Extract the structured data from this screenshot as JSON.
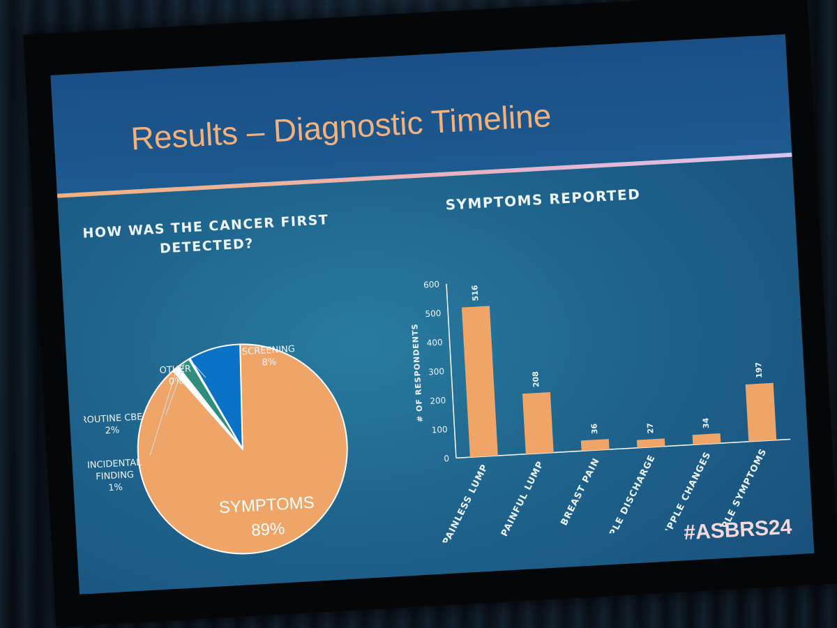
{
  "slide": {
    "title": "Results – Diagnostic Timeline",
    "hashtag": "#ASBRS24"
  },
  "colors": {
    "orange": "#f0a568",
    "teal": "#2f8d7e",
    "blue": "#0a73c6",
    "white": "#ffffff",
    "title": "#f3b27c"
  },
  "chart_data": [
    {
      "type": "pie",
      "title": "HOW WAS THE CANCER FIRST DETECTED?",
      "slices": [
        {
          "label": "SYMPTOMS",
          "value": 89,
          "display": "89%"
        },
        {
          "label": "INCIDENTAL FINDING",
          "value": 1,
          "display": "1%"
        },
        {
          "label": "ROUTINE CBE",
          "value": 2,
          "display": "2%"
        },
        {
          "label": "OTHER",
          "value": 0,
          "display": "0%"
        },
        {
          "label": "SCREENING",
          "value": 8,
          "display": "8%"
        }
      ]
    },
    {
      "type": "bar",
      "title": "SYMPTOMS REPORTED",
      "ylabel": "# OF RESPONDENTS",
      "ylim": [
        0,
        600
      ],
      "yticks": [
        0,
        100,
        200,
        300,
        400,
        500,
        600
      ],
      "categories": [
        "PAINLESS LUMP",
        "PAINFUL LUMP",
        "BREAST PAIN",
        "NIPPLE DISCHARGE",
        "SKIN/NIPPLE CHANGES",
        "MULTIPLE SYMPTOMS"
      ],
      "values": [
        516,
        208,
        36,
        27,
        34,
        197
      ],
      "grid": false
    }
  ]
}
